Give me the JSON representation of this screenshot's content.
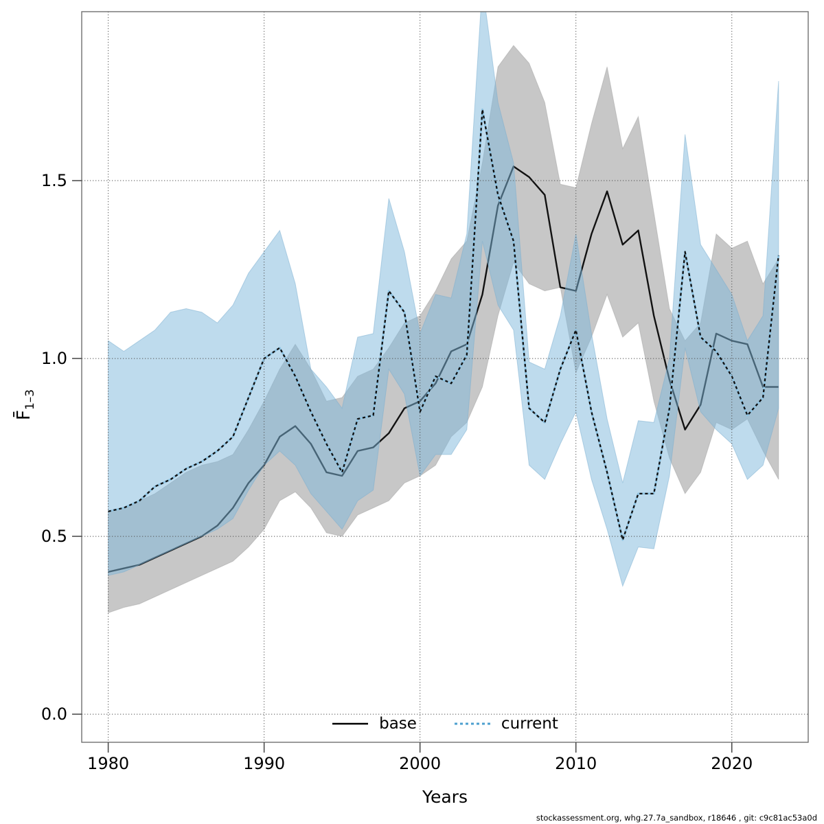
{
  "footer": "stockassessment.org, whg.27.7a_sandbox, r18646 , git: c9c81ac53a0d",
  "chart_data": {
    "type": "line",
    "title": "",
    "xlabel": "Years",
    "ylabel_base": "F̄",
    "ylabel_sub": "1–3",
    "xlim": [
      1978.3,
      2024.9
    ],
    "ylim": [
      -0.079,
      1.975
    ],
    "xticks": [
      1980,
      1990,
      2000,
      2010,
      2020
    ],
    "yticks": [
      "0.0",
      "0.5",
      "1.0",
      "1.5"
    ],
    "grid": "dotted",
    "legend_position": "bottom-center",
    "x": [
      1980,
      1981,
      1982,
      1983,
      1984,
      1985,
      1986,
      1987,
      1988,
      1989,
      1990,
      1991,
      1992,
      1993,
      1994,
      1995,
      1996,
      1997,
      1998,
      1999,
      2000,
      2001,
      2002,
      2003,
      2004,
      2005,
      2006,
      2007,
      2008,
      2009,
      2010,
      2011,
      2012,
      2013,
      2014,
      2015,
      2016,
      2017,
      2018,
      2019,
      2020,
      2021,
      2022,
      2023
    ],
    "series": [
      {
        "name": "base",
        "style": "solid",
        "color": "#111111",
        "values": [
          0.4,
          0.41,
          0.42,
          0.44,
          0.46,
          0.48,
          0.5,
          0.53,
          0.58,
          0.65,
          0.7,
          0.78,
          0.81,
          0.76,
          0.68,
          0.67,
          0.74,
          0.75,
          0.79,
          0.86,
          0.88,
          0.93,
          1.02,
          1.04,
          1.18,
          1.43,
          1.54,
          1.51,
          1.46,
          1.2,
          1.19,
          1.35,
          1.47,
          1.32,
          1.36,
          1.12,
          0.94,
          0.8,
          0.87,
          1.07,
          1.05,
          1.04,
          0.92,
          0.92
        ]
      },
      {
        "name": "current",
        "style": "dashed",
        "color": "#4da0cf",
        "dash_color": "#101010",
        "values": [
          0.57,
          0.58,
          0.6,
          0.64,
          0.66,
          0.69,
          0.71,
          0.74,
          0.78,
          0.89,
          1.0,
          1.03,
          0.95,
          0.85,
          0.76,
          0.68,
          0.83,
          0.84,
          1.19,
          1.13,
          0.85,
          0.95,
          0.93,
          1.01,
          1.7,
          1.46,
          1.33,
          0.86,
          0.82,
          0.97,
          1.08,
          0.85,
          0.68,
          0.49,
          0.62,
          0.62,
          0.86,
          1.3,
          1.06,
          1.02,
          0.95,
          0.84,
          0.89,
          1.29
        ]
      }
    ],
    "bands": [
      {
        "series": "base",
        "color": "#999999",
        "opacity": 0.55,
        "upper": [
          0.57,
          0.58,
          0.6,
          0.62,
          0.65,
          0.68,
          0.7,
          0.71,
          0.73,
          0.8,
          0.88,
          0.97,
          1.04,
          0.97,
          0.88,
          0.89,
          0.95,
          0.97,
          1.03,
          1.1,
          1.12,
          1.19,
          1.28,
          1.33,
          1.55,
          1.82,
          1.88,
          1.83,
          1.72,
          1.49,
          1.48,
          1.66,
          1.82,
          1.59,
          1.68,
          1.41,
          1.14,
          1.05,
          1.1,
          1.35,
          1.31,
          1.33,
          1.21,
          1.28
        ],
        "lower": [
          0.285,
          0.3,
          0.31,
          0.33,
          0.35,
          0.37,
          0.39,
          0.41,
          0.43,
          0.47,
          0.52,
          0.6,
          0.625,
          0.58,
          0.51,
          0.5,
          0.56,
          0.58,
          0.6,
          0.65,
          0.67,
          0.7,
          0.78,
          0.82,
          0.92,
          1.12,
          1.27,
          1.21,
          1.19,
          1.2,
          0.96,
          1.06,
          1.18,
          1.06,
          1.1,
          0.88,
          0.72,
          0.62,
          0.68,
          0.82,
          0.8,
          0.83,
          0.74,
          0.66
        ]
      },
      {
        "series": "current",
        "color": "#7db8dc",
        "opacity": 0.5,
        "upper": [
          1.05,
          1.02,
          1.05,
          1.08,
          1.13,
          1.14,
          1.13,
          1.1,
          1.15,
          1.24,
          1.3,
          1.36,
          1.21,
          0.97,
          0.92,
          0.86,
          1.06,
          1.07,
          1.45,
          1.3,
          1.07,
          1.18,
          1.17,
          1.35,
          2.05,
          1.72,
          1.55,
          0.99,
          0.97,
          1.12,
          1.35,
          1.07,
          0.83,
          0.65,
          0.825,
          0.82,
          1.0,
          1.63,
          1.32,
          1.25,
          1.18,
          1.05,
          1.12,
          1.78
        ],
        "lower": [
          0.39,
          0.4,
          0.42,
          0.44,
          0.46,
          0.48,
          0.5,
          0.52,
          0.55,
          0.63,
          0.7,
          0.74,
          0.7,
          0.62,
          0.57,
          0.52,
          0.6,
          0.63,
          0.97,
          0.9,
          0.67,
          0.73,
          0.73,
          0.8,
          1.33,
          1.15,
          1.08,
          0.7,
          0.66,
          0.76,
          0.85,
          0.66,
          0.52,
          0.36,
          0.47,
          0.465,
          0.67,
          1.03,
          0.85,
          0.8,
          0.76,
          0.66,
          0.7,
          0.86
        ]
      }
    ]
  }
}
